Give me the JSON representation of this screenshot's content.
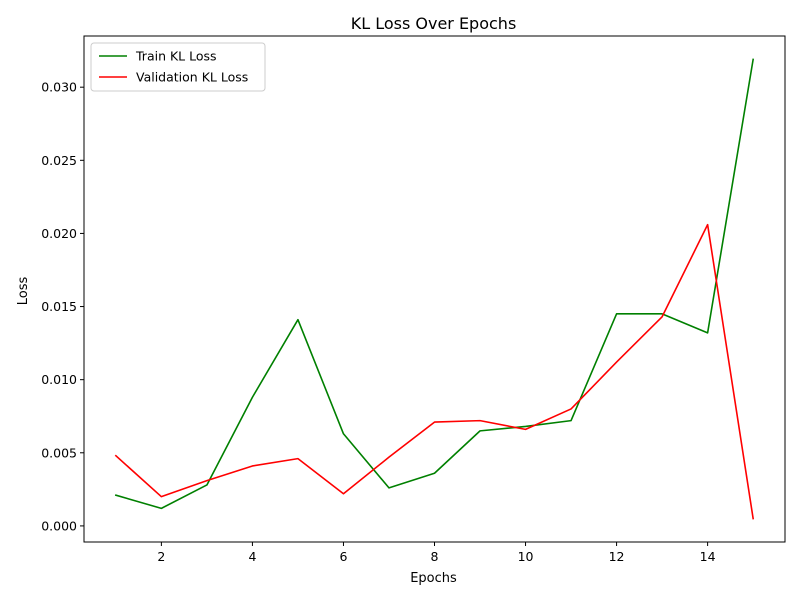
{
  "chart_data": {
    "type": "line",
    "title": "KL Loss Over Epochs",
    "xlabel": "Epochs",
    "ylabel": "Loss",
    "x": [
      1,
      2,
      3,
      4,
      5,
      6,
      7,
      8,
      9,
      10,
      11,
      12,
      13,
      14,
      15
    ],
    "xlim": [
      0.3,
      15.7
    ],
    "ylim": [
      -0.0011,
      0.0335
    ],
    "xticks": [
      2,
      4,
      6,
      8,
      10,
      12,
      14
    ],
    "xtick_labels": [
      "2",
      "4",
      "6",
      "8",
      "10",
      "12",
      "14"
    ],
    "yticks": [
      0.0,
      0.005,
      0.01,
      0.015,
      0.02,
      0.025,
      0.03
    ],
    "ytick_labels": [
      "0.000",
      "0.005",
      "0.010",
      "0.015",
      "0.020",
      "0.025",
      "0.030"
    ],
    "grid": false,
    "legend_position": "top-left",
    "series": [
      {
        "name": "Train KL Loss",
        "color": "#008000",
        "values": [
          0.0021,
          0.0012,
          0.0028,
          0.0088,
          0.0141,
          0.0063,
          0.0026,
          0.0036,
          0.0065,
          0.0068,
          0.0072,
          0.0145,
          0.0145,
          0.0132,
          0.0319
        ]
      },
      {
        "name": "Validation KL Loss",
        "color": "#ff0000",
        "values": [
          0.0048,
          0.002,
          0.0031,
          0.0041,
          0.0046,
          0.0022,
          0.0047,
          0.0071,
          0.0072,
          0.0066,
          0.008,
          0.0112,
          0.0143,
          0.0206,
          0.0005
        ]
      }
    ]
  }
}
